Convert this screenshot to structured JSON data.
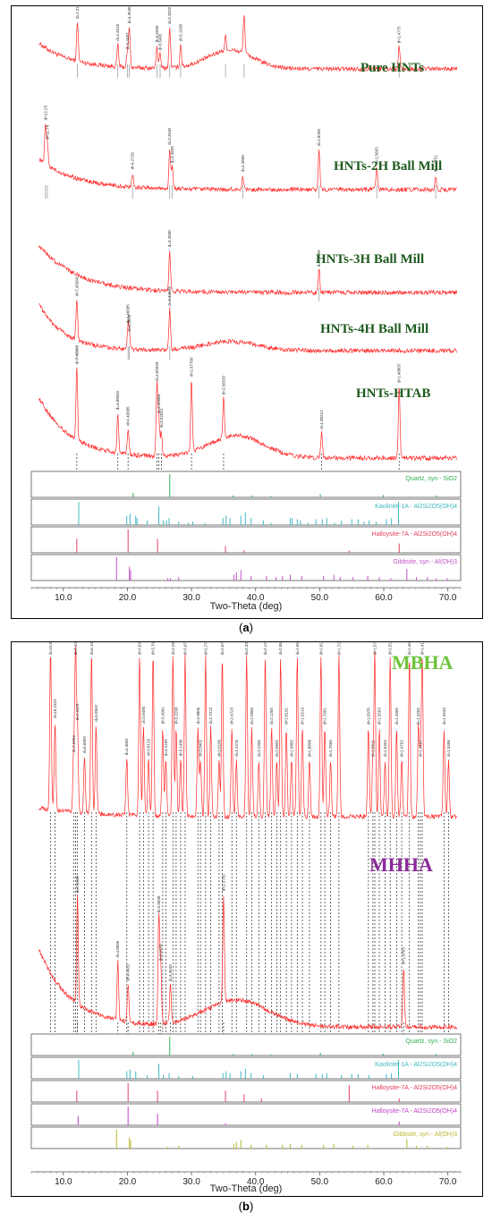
{
  "panel_labels": [
    "a",
    "b"
  ],
  "chart_data": [
    {
      "type": "line",
      "title": "",
      "xlabel": "Two-Theta (deg)",
      "ylabel": "",
      "xlim": [
        5,
        72
      ],
      "xticks": [
        10.0,
        20.0,
        30.0,
        40.0,
        50.0,
        60.0,
        70.0
      ],
      "xtick_labels": [
        "10.0",
        "20.0",
        "30.0",
        "40.0",
        "50.0",
        "60.0",
        "70.0"
      ],
      "grid": false,
      "series": [
        {
          "name": "Pure HNTs",
          "label_color": "#1e5a1e",
          "line_color": "#ff2a2a",
          "peaks": [
            12.2,
            18.5,
            20.0,
            20.3,
            24.6,
            25.1,
            26.6,
            28.3,
            35.3,
            38.2,
            62.4
          ],
          "peak_labels": [
            "d=7.2166",
            "d=4.4516",
            "d=4.4487",
            "d=4.3536",
            "d=3.5999",
            "d=3.5495",
            "d=3.3529",
            "d=3.1538",
            "",
            "",
            "d=1.4775"
          ]
        },
        {
          "name": "HNTs-2H Ball Mill",
          "label_color": "#1e5a1e",
          "line_color": "#ff2a2a",
          "peaks": [
            7.2,
            7.5,
            20.8,
            26.6,
            27.0,
            38.0,
            49.9,
            58.9,
            68.1
          ],
          "peak_labels": [
            "d=12.23",
            "d=11.74",
            "d=4.2720",
            "d=3.3540",
            "d=3.2826",
            "d=2.3660",
            "d=1.8258",
            "d=1.5663",
            "d=1.3751"
          ]
        },
        {
          "name": "HNTs-3H Ball Mill",
          "label_color": "#1e5a1e",
          "line_color": "#ff2a2a",
          "peaks": [
            26.6,
            49.9
          ],
          "peak_labels": [
            "d=3.3500",
            "d=1.8255"
          ]
        },
        {
          "name": "HNTs-4H Ball Mill",
          "label_color": "#1e5a1e",
          "line_color": "#ff2a2a",
          "peaks": [
            12.1,
            20.1,
            20.3,
            26.6
          ],
          "peak_labels": [
            "d=7.45669",
            "d=4.46685",
            "d=4.3639",
            "d=3.34573"
          ]
        },
        {
          "name": "HNTs-HTAB",
          "label_color": "#1e5a1e",
          "line_color": "#ff2a2a",
          "peaks": [
            12.1,
            18.5,
            20.1,
            24.6,
            24.9,
            25.3,
            30.0,
            35.0,
            50.3,
            62.4
          ],
          "peak_labels": [
            "d=7.45669",
            "d=4.89645",
            "d=4.46685",
            "d=3.65928",
            "d=3.56089",
            "d=3.52041",
            "d=2.97760",
            "d=2.56633",
            "d=1.80212",
            "d=1.48807"
          ]
        }
      ],
      "reference_patterns": [
        {
          "name": "Quartz, syn - SiO2",
          "color": "#30b050",
          "lines": [
            [
              20.9,
              0.2
            ],
            [
              26.6,
              1.0
            ],
            [
              36.5,
              0.08
            ],
            [
              39.5,
              0.08
            ],
            [
              42.4,
              0.06
            ],
            [
              50.1,
              0.14
            ],
            [
              59.9,
              0.1
            ],
            [
              68.2,
              0.08
            ]
          ]
        },
        {
          "name": "Kaolinite-1A - Al2Si2O5(OH)4",
          "color": "#40b8c0",
          "lines": [
            [
              12.4,
              1.0
            ],
            [
              19.9,
              0.4
            ],
            [
              20.4,
              0.5
            ],
            [
              21.3,
              0.4
            ],
            [
              21.5,
              0.3
            ],
            [
              23.1,
              0.2
            ],
            [
              24.9,
              0.8
            ],
            [
              25.6,
              0.2
            ],
            [
              26.1,
              0.2
            ],
            [
              26.5,
              0.3
            ],
            [
              28.0,
              0.15
            ],
            [
              29.5,
              0.1
            ],
            [
              30.2,
              0.15
            ],
            [
              32.1,
              0.1
            ],
            [
              34.9,
              0.3
            ],
            [
              35.4,
              0.4
            ],
            [
              36.0,
              0.3
            ],
            [
              37.7,
              0.4
            ],
            [
              38.4,
              0.55
            ],
            [
              39.3,
              0.3
            ],
            [
              41.2,
              0.2
            ],
            [
              42.4,
              0.1
            ],
            [
              45.4,
              0.3
            ],
            [
              45.7,
              0.3
            ],
            [
              46.5,
              0.25
            ],
            [
              47.0,
              0.2
            ],
            [
              48.2,
              0.1
            ],
            [
              49.4,
              0.25
            ],
            [
              50.4,
              0.25
            ],
            [
              51.1,
              0.3
            ],
            [
              52.3,
              0.1
            ],
            [
              53.4,
              0.2
            ],
            [
              55.0,
              0.25
            ],
            [
              56.0,
              0.25
            ],
            [
              56.9,
              0.15
            ],
            [
              57.7,
              0.2
            ],
            [
              58.8,
              0.15
            ],
            [
              60.4,
              0.25
            ],
            [
              61.2,
              0.3
            ],
            [
              62.3,
              1.0
            ]
          ]
        },
        {
          "name": "Halloysite-7A - Al2Si2O5(OH)4",
          "color": "#e04060",
          "lines": [
            [
              12.1,
              0.6
            ],
            [
              20.1,
              1.0
            ],
            [
              24.7,
              0.6
            ],
            [
              35.3,
              0.3
            ],
            [
              38.2,
              0.12
            ],
            [
              54.6,
              0.1
            ],
            [
              62.4,
              0.4
            ]
          ]
        },
        {
          "name": "Gibbsite, syn - Al(OH)3",
          "color": "#c050c8",
          "lines": [
            [
              18.3,
              1.0
            ],
            [
              20.3,
              0.6
            ],
            [
              20.5,
              0.45
            ],
            [
              26.3,
              0.1
            ],
            [
              26.7,
              0.1
            ],
            [
              28.0,
              0.15
            ],
            [
              36.6,
              0.25
            ],
            [
              37.0,
              0.35
            ],
            [
              37.7,
              0.45
            ],
            [
              39.3,
              0.2
            ],
            [
              41.7,
              0.2
            ],
            [
              43.2,
              0.15
            ],
            [
              44.2,
              0.2
            ],
            [
              45.4,
              0.25
            ],
            [
              47.2,
              0.2
            ],
            [
              50.6,
              0.2
            ],
            [
              52.2,
              0.25
            ],
            [
              53.2,
              0.15
            ],
            [
              55.2,
              0.15
            ],
            [
              57.5,
              0.2
            ],
            [
              59.3,
              0.15
            ],
            [
              61.1,
              0.1
            ],
            [
              63.6,
              0.5
            ],
            [
              65.1,
              0.15
            ],
            [
              66.8,
              0.15
            ],
            [
              68.2,
              0.1
            ],
            [
              69.9,
              0.1
            ]
          ]
        }
      ]
    },
    {
      "type": "line",
      "title": "",
      "xlabel": "Two-Theta (deg)",
      "ylabel": "",
      "xlim": [
        5,
        72
      ],
      "xticks": [
        10.0,
        20.0,
        30.0,
        40.0,
        50.0,
        60.0,
        70.0
      ],
      "xtick_labels": [
        "10.0",
        "20.0",
        "30.0",
        "40.0",
        "50.0",
        "60.0",
        "70.0"
      ],
      "grid": false,
      "series": [
        {
          "name": "MBHA",
          "label_color": "#6ec43c",
          "line_color": "#ff2a2a",
          "peaks": [
            8.0,
            8.7,
            11.6,
            11.9,
            12.2,
            13.3,
            14.4,
            15.1,
            19.9,
            21.9,
            22.5,
            23.3,
            24.0,
            25.5,
            26.0,
            27.1,
            27.6,
            28.3,
            29.0,
            31.0,
            31.4,
            32.2,
            33.0,
            34.3,
            34.8,
            36.3,
            37.0,
            38.6,
            39.4,
            40.5,
            41.5,
            42.5,
            43.3,
            43.9,
            44.8,
            45.6,
            46.5,
            47.3,
            48.4,
            50.2,
            50.8,
            51.7,
            53.0,
            57.6,
            58.3,
            58.6,
            59.3,
            60.2,
            61.0,
            62.0,
            62.8,
            64.0,
            65.4,
            65.7,
            66.0,
            69.4,
            70.1
          ],
          "peak_labels": [
            "d=10.8645",
            "d=10.2323",
            "d=7.6294",
            "d=7.4312",
            "d=7.2479",
            "d=6.6802",
            "d=6.1399",
            "d=5.8562",
            "d=4.4663",
            "d=3.5944",
            "d=3.9495",
            "d=3.8129",
            "d=3.7045",
            "d=3.4901",
            "d=3.4189",
            "d=3.2925",
            "d=3.2298",
            "d=3.1486",
            "d=3.0712",
            "d=2.8805",
            "d=2.8462",
            "d=2.7732",
            "d=2.7212",
            "d=2.6106",
            "d=2.5771",
            "d=2.4723",
            "d=2.4275",
            "d=2.3305",
            "d=2.2850",
            "d=2.2255",
            "d=2.1739",
            "d=2.1255",
            "d=2.0902",
            "d=2.0552",
            "d=2.0191",
            "d=1.9882",
            "d=1.9520",
            "d=1.9219",
            "d=1.8808",
            "d=1.8159",
            "d=1.7961",
            "d=1.7666",
            "d=1.7255",
            "d=1.5978",
            "d=1.5811",
            "d=1.5735",
            "d=1.5563",
            "d=1.5354",
            "d=1.5173",
            "d=1.4955",
            "d=1.4792",
            "d=1.4537",
            "d=1.4255",
            "d=1.4197",
            "d=1.4143",
            "d=1.3533",
            "d=1.3408"
          ]
        },
        {
          "name": "MHHA",
          "label_color": "#8a2a9a",
          "line_color": "#ff2a2a",
          "peaks": [
            12.2,
            18.5,
            20.1,
            24.9,
            25.2,
            26.7,
            35.0,
            63.1
          ],
          "peak_labels": [
            "d=7.2449",
            "d=4.8095",
            "d=4.4432",
            "d=3.5838",
            "d=3.5275",
            "d=3.3549",
            "d=2.5755",
            "d=1.4763"
          ]
        }
      ],
      "reference_patterns": [
        {
          "name": "Quartz, syn - SiO2",
          "color": "#30b050",
          "lines": [
            [
              20.9,
              0.2
            ],
            [
              26.6,
              1.0
            ],
            [
              36.5,
              0.08
            ],
            [
              39.5,
              0.08
            ],
            [
              42.4,
              0.06
            ],
            [
              50.1,
              0.14
            ],
            [
              59.9,
              0.1
            ],
            [
              68.2,
              0.08
            ]
          ]
        },
        {
          "name": "Kaolinite-1A - Al2Si2O5(OH)4",
          "color": "#40b8c0",
          "lines": [
            [
              12.4,
              1.0
            ],
            [
              19.9,
              0.4
            ],
            [
              20.4,
              0.5
            ],
            [
              21.3,
              0.4
            ],
            [
              23.1,
              0.2
            ],
            [
              24.9,
              0.8
            ],
            [
              25.6,
              0.2
            ],
            [
              26.5,
              0.3
            ],
            [
              28.0,
              0.15
            ],
            [
              30.2,
              0.15
            ],
            [
              34.9,
              0.3
            ],
            [
              35.4,
              0.4
            ],
            [
              36.0,
              0.3
            ],
            [
              37.7,
              0.4
            ],
            [
              38.4,
              0.55
            ],
            [
              39.3,
              0.3
            ],
            [
              41.2,
              0.2
            ],
            [
              45.4,
              0.3
            ],
            [
              46.5,
              0.25
            ],
            [
              49.4,
              0.25
            ],
            [
              50.4,
              0.25
            ],
            [
              51.1,
              0.3
            ],
            [
              53.4,
              0.2
            ],
            [
              55.0,
              0.25
            ],
            [
              56.0,
              0.25
            ],
            [
              57.7,
              0.2
            ],
            [
              60.4,
              0.25
            ],
            [
              61.2,
              0.3
            ],
            [
              62.3,
              1.0
            ]
          ]
        },
        {
          "name": "Halloysite-7A - Al2Si2O5(OH)4",
          "color": "#e04060",
          "lines": [
            [
              12.1,
              0.6
            ],
            [
              20.1,
              1.0
            ],
            [
              24.7,
              0.6
            ],
            [
              35.3,
              0.6
            ],
            [
              38.2,
              0.4
            ],
            [
              40.9,
              0.2
            ],
            [
              54.6,
              0.9
            ],
            [
              62.4,
              0.2
            ]
          ]
        },
        {
          "name": "Halloysite-7A - Al2Si2O5(OH)4",
          "color": "#c040c8",
          "lines": [
            [
              12.3,
              0.5
            ],
            [
              20.1,
              1.0
            ],
            [
              24.7,
              0.6
            ],
            [
              35.3,
              0.1
            ],
            [
              62.4,
              0.2
            ]
          ]
        },
        {
          "name": "Gibbsite, syn - Al(OH)3",
          "color": "#b8b830",
          "lines": [
            [
              18.3,
              1.0
            ],
            [
              20.3,
              0.6
            ],
            [
              20.5,
              0.45
            ],
            [
              26.3,
              0.1
            ],
            [
              28.0,
              0.15
            ],
            [
              36.6,
              0.25
            ],
            [
              37.0,
              0.35
            ],
            [
              37.7,
              0.45
            ],
            [
              39.3,
              0.2
            ],
            [
              41.7,
              0.2
            ],
            [
              44.2,
              0.2
            ],
            [
              45.4,
              0.25
            ],
            [
              47.2,
              0.2
            ],
            [
              50.6,
              0.2
            ],
            [
              52.2,
              0.25
            ],
            [
              55.2,
              0.15
            ],
            [
              57.5,
              0.2
            ],
            [
              63.6,
              0.5
            ],
            [
              65.1,
              0.15
            ],
            [
              66.8,
              0.15
            ],
            [
              69.9,
              0.1
            ]
          ]
        }
      ]
    }
  ]
}
